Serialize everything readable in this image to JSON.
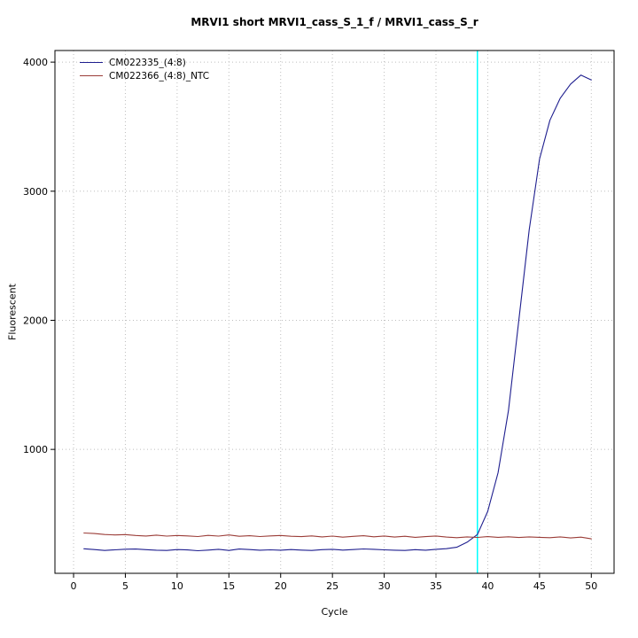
{
  "chart_data": {
    "type": "line",
    "title": "MRVI1 short MRVI1_cass_S_1_f / MRVI1_cass_S_r",
    "xlabel": "Cycle",
    "ylabel": "Fluorescent",
    "x_ticks": [
      0,
      5,
      10,
      15,
      20,
      25,
      30,
      35,
      40,
      45,
      50
    ],
    "y_ticks": [
      1000,
      2000,
      3000,
      4000
    ],
    "xlim": [
      -1.8,
      52.2
    ],
    "ylim": [
      40,
      4090
    ],
    "grid": true,
    "grid_color": "#BEBEBE",
    "axis_color": "#000000",
    "legend_position": "top-left",
    "threshold_line": {
      "x": 39,
      "color": "#00FFFF"
    },
    "x": [
      1,
      2,
      3,
      4,
      5,
      6,
      7,
      8,
      9,
      10,
      11,
      12,
      13,
      14,
      15,
      16,
      17,
      18,
      19,
      20,
      21,
      22,
      23,
      24,
      25,
      26,
      27,
      28,
      29,
      30,
      31,
      32,
      33,
      34,
      35,
      36,
      37,
      38,
      39,
      40,
      41,
      42,
      43,
      44,
      45,
      46,
      47,
      48,
      49,
      50
    ],
    "series": [
      {
        "name": "CM022335_(4:8)",
        "color": "#1F1F8F",
        "values": [
          230,
          224,
          217,
          222,
          227,
          228,
          223,
          219,
          217,
          224,
          221,
          215,
          220,
          226,
          217,
          228,
          224,
          219,
          222,
          219,
          224,
          220,
          217,
          223,
          226,
          220,
          224,
          229,
          226,
          222,
          219,
          217,
          223,
          219,
          226,
          231,
          242,
          281,
          341,
          520,
          820,
          1300,
          2000,
          2700,
          3250,
          3550,
          3720,
          3830,
          3900,
          3862
        ]
      },
      {
        "name": "CM022366_(4:8)_NTC",
        "color": "#9B3D38",
        "values": [
          352,
          348,
          341,
          337,
          340,
          333,
          329,
          336,
          328,
          333,
          330,
          325,
          334,
          328,
          337,
          327,
          331,
          325,
          330,
          333,
          327,
          324,
          330,
          322,
          328,
          320,
          326,
          331,
          323,
          329,
          321,
          327,
          319,
          324,
          329,
          321,
          316,
          322,
          318,
          324,
          319,
          323,
          317,
          322,
          319,
          316,
          322,
          314,
          320,
          307
        ]
      }
    ]
  }
}
